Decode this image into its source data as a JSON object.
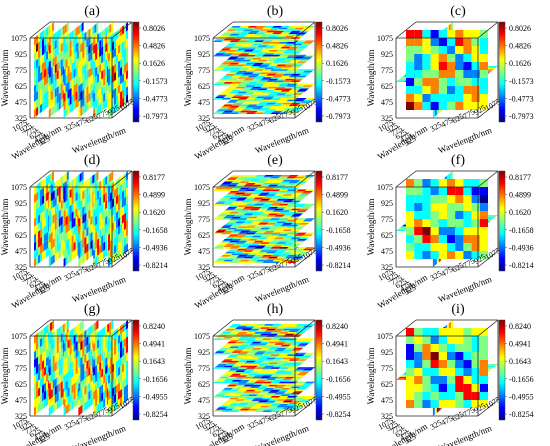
{
  "figure": {
    "panels": [
      "(a)",
      "(b)",
      "(c)",
      "(d)",
      "(e)",
      "(f)",
      "(g)",
      "(h)",
      "(i)"
    ]
  },
  "chart_data": [
    {
      "panel": "(a)",
      "type": "heatmap",
      "view": "vertical slices along x",
      "xlabel": "Wavelength/nm",
      "ylabel": "Wavelength/nm",
      "zlabel": "Wavelength/nm",
      "x_ticks": [
        "325",
        "475",
        "625",
        "775",
        "925",
        "1075"
      ],
      "y_ticks": [
        "1075",
        "925",
        "775",
        "625",
        "475",
        "325"
      ],
      "z_ticks": [
        "325",
        "475",
        "625",
        "775",
        "925",
        "1075"
      ],
      "colorbar_ticks": [
        "0.8026",
        "0.4826",
        "0.1626",
        "-0.1573",
        "-0.4773",
        "-0.7973"
      ],
      "zlim": [
        -0.7973,
        0.8026
      ],
      "colormap": "jet"
    },
    {
      "panel": "(b)",
      "type": "heatmap",
      "view": "horizontal slices",
      "xlabel": "Wavelength/nm",
      "ylabel": "Wavelength/nm",
      "zlabel": "Wavelength/nm",
      "x_ticks": [
        "325",
        "475",
        "625",
        "775",
        "925",
        "1075"
      ],
      "y_ticks": [
        "1075",
        "925",
        "775",
        "625",
        "475",
        "325"
      ],
      "z_ticks": [
        "325",
        "475",
        "625",
        "775",
        "925",
        "1075"
      ],
      "colorbar_ticks": [
        "0.8026",
        "0.4826",
        "0.1626",
        "-0.1573",
        "-0.4773",
        "-0.7973"
      ],
      "zlim": [
        -0.7973,
        0.8026
      ],
      "colormap": "jet"
    },
    {
      "panel": "(c)",
      "type": "heatmap",
      "view": "orthogonal slices",
      "xlabel": "Wavelength/nm",
      "ylabel": "Wavelength/nm",
      "zlabel": "Wavelength/nm",
      "x_ticks": [
        "325",
        "475",
        "625",
        "775",
        "925",
        "1075"
      ],
      "y_ticks": [
        "1075",
        "925",
        "775",
        "625",
        "475",
        "325"
      ],
      "z_ticks": [
        "325",
        "475",
        "625",
        "775",
        "925",
        "1075"
      ],
      "colorbar_ticks": [
        "0.8026",
        "0.4826",
        "0.1626",
        "-0.1573",
        "-0.4773",
        "-0.7973"
      ],
      "zlim": [
        -0.7973,
        0.8026
      ],
      "colormap": "jet"
    },
    {
      "panel": "(d)",
      "type": "heatmap",
      "view": "vertical slices along x",
      "xlabel": "Wavelength/nm",
      "ylabel": "Wavelength/nm",
      "zlabel": "Wavelength/nm",
      "x_ticks": [
        "325",
        "475",
        "625",
        "775",
        "925",
        "1075"
      ],
      "y_ticks": [
        "1075",
        "925",
        "775",
        "625",
        "475",
        "325"
      ],
      "z_ticks": [
        "325",
        "475",
        "625",
        "775",
        "925",
        "1075"
      ],
      "colorbar_ticks": [
        "0.8177",
        "0.4899",
        "0.1620",
        "-0.1658",
        "-0.4936",
        "-0.8214"
      ],
      "zlim": [
        -0.8214,
        0.8177
      ],
      "colormap": "jet"
    },
    {
      "panel": "(e)",
      "type": "heatmap",
      "view": "horizontal slices",
      "xlabel": "Wavelength/nm",
      "ylabel": "Wavelength/nm",
      "zlabel": "Wavelength/nm",
      "x_ticks": [
        "325",
        "475",
        "625",
        "775",
        "925",
        "1075"
      ],
      "y_ticks": [
        "1075",
        "925",
        "775",
        "625",
        "475",
        "325"
      ],
      "z_ticks": [
        "325",
        "475",
        "625",
        "775",
        "925",
        "1075"
      ],
      "colorbar_ticks": [
        "0.8177",
        "0.4899",
        "0.1620",
        "-0.1658",
        "-0.4936",
        "-0.8214"
      ],
      "zlim": [
        -0.8214,
        0.8177
      ],
      "colormap": "jet"
    },
    {
      "panel": "(f)",
      "type": "heatmap",
      "view": "orthogonal slices",
      "xlabel": "Wavelength/nm",
      "ylabel": "Wavelength/nm",
      "zlabel": "Wavelength/nm",
      "x_ticks": [
        "325",
        "475",
        "625",
        "775",
        "925",
        "1075"
      ],
      "y_ticks": [
        "1075",
        "925",
        "775",
        "625",
        "475",
        "325"
      ],
      "z_ticks": [
        "325",
        "475",
        "625",
        "775",
        "925",
        "1075"
      ],
      "colorbar_ticks": [
        "0.8177",
        "0.4899",
        "0.1620",
        "-0.1658",
        "-0.4936",
        "-0.8214"
      ],
      "zlim": [
        -0.8214,
        0.8177
      ],
      "colormap": "jet"
    },
    {
      "panel": "(g)",
      "type": "heatmap",
      "view": "vertical slices along x",
      "xlabel": "Wavelength/nm",
      "ylabel": "Wavelength/nm",
      "zlabel": "Wavelength/nm",
      "x_ticks": [
        "325",
        "475",
        "625",
        "775",
        "925",
        "1075"
      ],
      "y_ticks": [
        "1075",
        "925",
        "775",
        "625",
        "475",
        "325"
      ],
      "z_ticks": [
        "325",
        "475",
        "625",
        "775",
        "925",
        "1075"
      ],
      "colorbar_ticks": [
        "0.8240",
        "0.4941",
        "0.1643",
        "-0.1656",
        "-0.4955",
        "-0.8254"
      ],
      "zlim": [
        -0.8254,
        0.824
      ],
      "colormap": "jet"
    },
    {
      "panel": "(h)",
      "type": "heatmap",
      "view": "horizontal slices",
      "xlabel": "Wavelength/nm",
      "ylabel": "Wavelength/nm",
      "zlabel": "Wavelength/nm",
      "x_ticks": [
        "325",
        "475",
        "625",
        "775",
        "925",
        "1075"
      ],
      "y_ticks": [
        "1075",
        "925",
        "775",
        "625",
        "475",
        "325"
      ],
      "z_ticks": [
        "325",
        "475",
        "625",
        "775",
        "925",
        "1075"
      ],
      "colorbar_ticks": [
        "0.8240",
        "0.4941",
        "0.1643",
        "-0.1656",
        "-0.4955",
        "-0.8254"
      ],
      "zlim": [
        -0.8254,
        0.824
      ],
      "colormap": "jet"
    },
    {
      "panel": "(i)",
      "type": "heatmap",
      "view": "orthogonal slices",
      "xlabel": "Wavelength/nm",
      "ylabel": "Wavelength/nm",
      "zlabel": "Wavelength/nm",
      "x_ticks": [
        "325",
        "475",
        "625",
        "775",
        "925",
        "1075"
      ],
      "y_ticks": [
        "1075",
        "925",
        "775",
        "625",
        "475",
        "325"
      ],
      "z_ticks": [
        "325",
        "475",
        "625",
        "775",
        "925",
        "1075"
      ],
      "colorbar_ticks": [
        "0.8240",
        "0.4941",
        "0.1643",
        "-0.1656",
        "-0.4955",
        "-0.8254"
      ],
      "zlim": [
        -0.8254,
        0.824
      ],
      "colormap": "jet"
    }
  ],
  "colormap_colors": [
    "#00008f",
    "#0000ff",
    "#0080ff",
    "#00ffff",
    "#80ff80",
    "#ffff00",
    "#ff8000",
    "#ff0000",
    "#800000"
  ]
}
